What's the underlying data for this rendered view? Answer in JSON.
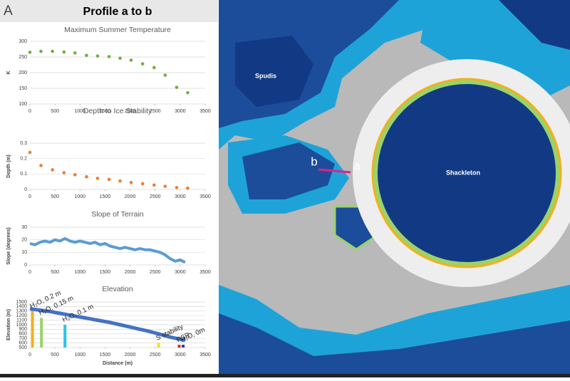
{
  "panel_label": "A",
  "header_title": "Profile a to b",
  "map_labels": {
    "spudis": "Spudis",
    "shackleton": "Shackleton",
    "point_a": "a",
    "point_b": "b"
  },
  "chart_data": [
    {
      "type": "scatter",
      "title": "Maximum Summer Temperature",
      "y_label": "K",
      "color": "#70ad47",
      "x": [
        0,
        220,
        450,
        680,
        900,
        1130,
        1350,
        1580,
        1800,
        2020,
        2250,
        2480,
        2700,
        2930,
        3150
      ],
      "values": [
        265,
        268,
        268,
        266,
        263,
        255,
        253,
        251,
        246,
        240,
        228,
        216,
        192,
        153,
        136
      ],
      "xlim": [
        0,
        3500
      ],
      "ylim": [
        100,
        300
      ],
      "xticks": [
        0,
        500,
        1000,
        1500,
        2000,
        2500,
        3000,
        3500
      ],
      "yticks": [
        100,
        150,
        200,
        250,
        300
      ],
      "grid": true
    },
    {
      "type": "scatter",
      "title": "Depth to Ice Stability",
      "y_label": "Depth (m)",
      "color": "#ed7d31",
      "x": [
        0,
        220,
        450,
        680,
        900,
        1130,
        1350,
        1580,
        1800,
        2020,
        2250,
        2480,
        2700,
        2930,
        3150
      ],
      "values": [
        0.24,
        0.155,
        0.127,
        0.108,
        0.095,
        0.082,
        0.072,
        0.065,
        0.055,
        0.045,
        0.037,
        0.028,
        0.02,
        0.012,
        0.008
      ],
      "xlim": [
        0,
        3500
      ],
      "ylim": [
        0,
        0.3
      ],
      "xticks": [
        0,
        500,
        1000,
        1500,
        2000,
        2500,
        3000,
        3500
      ],
      "yticks": [
        0,
        0.1,
        0.2,
        0.3
      ],
      "grid": true
    },
    {
      "type": "line",
      "title": "Slope of Terrain",
      "y_label": "Slope (degrees)",
      "color": "#5b9bd5",
      "x": [
        0,
        100,
        200,
        300,
        400,
        500,
        600,
        700,
        800,
        900,
        1000,
        1100,
        1200,
        1300,
        1400,
        1500,
        1600,
        1700,
        1800,
        1900,
        2000,
        2100,
        2200,
        2300,
        2400,
        2500,
        2600,
        2700,
        2800,
        2900,
        3000,
        3100
      ],
      "values": [
        17,
        16,
        18,
        19,
        18,
        20,
        19,
        21,
        19,
        18,
        19,
        18,
        17,
        18,
        16,
        17,
        15,
        14,
        13,
        14,
        13,
        12,
        13,
        12,
        12,
        11,
        10,
        8,
        5,
        3,
        4,
        2
      ],
      "xlim": [
        0,
        3500
      ],
      "ylim": [
        0,
        30
      ],
      "xticks": [
        0,
        500,
        1000,
        1500,
        2000,
        2500,
        3000,
        3500
      ],
      "yticks": [
        0,
        10,
        20,
        30
      ],
      "grid": true
    },
    {
      "type": "line",
      "title": "Elevation",
      "y_label": "Elevation (m)",
      "x_label": "Distance (m)",
      "color": "#4472c4",
      "x": [
        0,
        200,
        400,
        600,
        800,
        1000,
        1200,
        1400,
        1600,
        1800,
        2000,
        2200,
        2400,
        2600,
        2800,
        3000,
        3100
      ],
      "values": [
        1350,
        1320,
        1290,
        1250,
        1210,
        1170,
        1130,
        1090,
        1050,
        1000,
        950,
        900,
        850,
        790,
        730,
        680,
        660
      ],
      "xlim": [
        0,
        3500
      ],
      "ylim": [
        500,
        1500
      ],
      "xticks": [
        0,
        500,
        1000,
        1500,
        2000,
        2500,
        3000,
        3500
      ],
      "yticks": [
        500,
        600,
        700,
        800,
        900,
        1000,
        1100,
        1200,
        1300,
        1400,
        1500
      ],
      "grid": true,
      "markers": [
        {
          "x": 50,
          "value": 1300,
          "color": "#f2b01e"
        },
        {
          "x": 230,
          "value": 1150,
          "color": "#9ad36a"
        },
        {
          "x": 700,
          "value": 1000,
          "color": "#29c4e8"
        },
        {
          "x": 2570,
          "value": 600,
          "color": "#f5e21b"
        },
        {
          "x": 2980,
          "value": 560,
          "color": "#d62728"
        },
        {
          "x": 3060,
          "value": 560,
          "color": "#1f3c99"
        }
      ],
      "annotations": [
        "H₂O, 0.2 m",
        "H₂O, 0.15 m",
        "H₂O, 0.1 m",
        "S stability",
        "PSR",
        "H₂O, 0m"
      ]
    }
  ]
}
